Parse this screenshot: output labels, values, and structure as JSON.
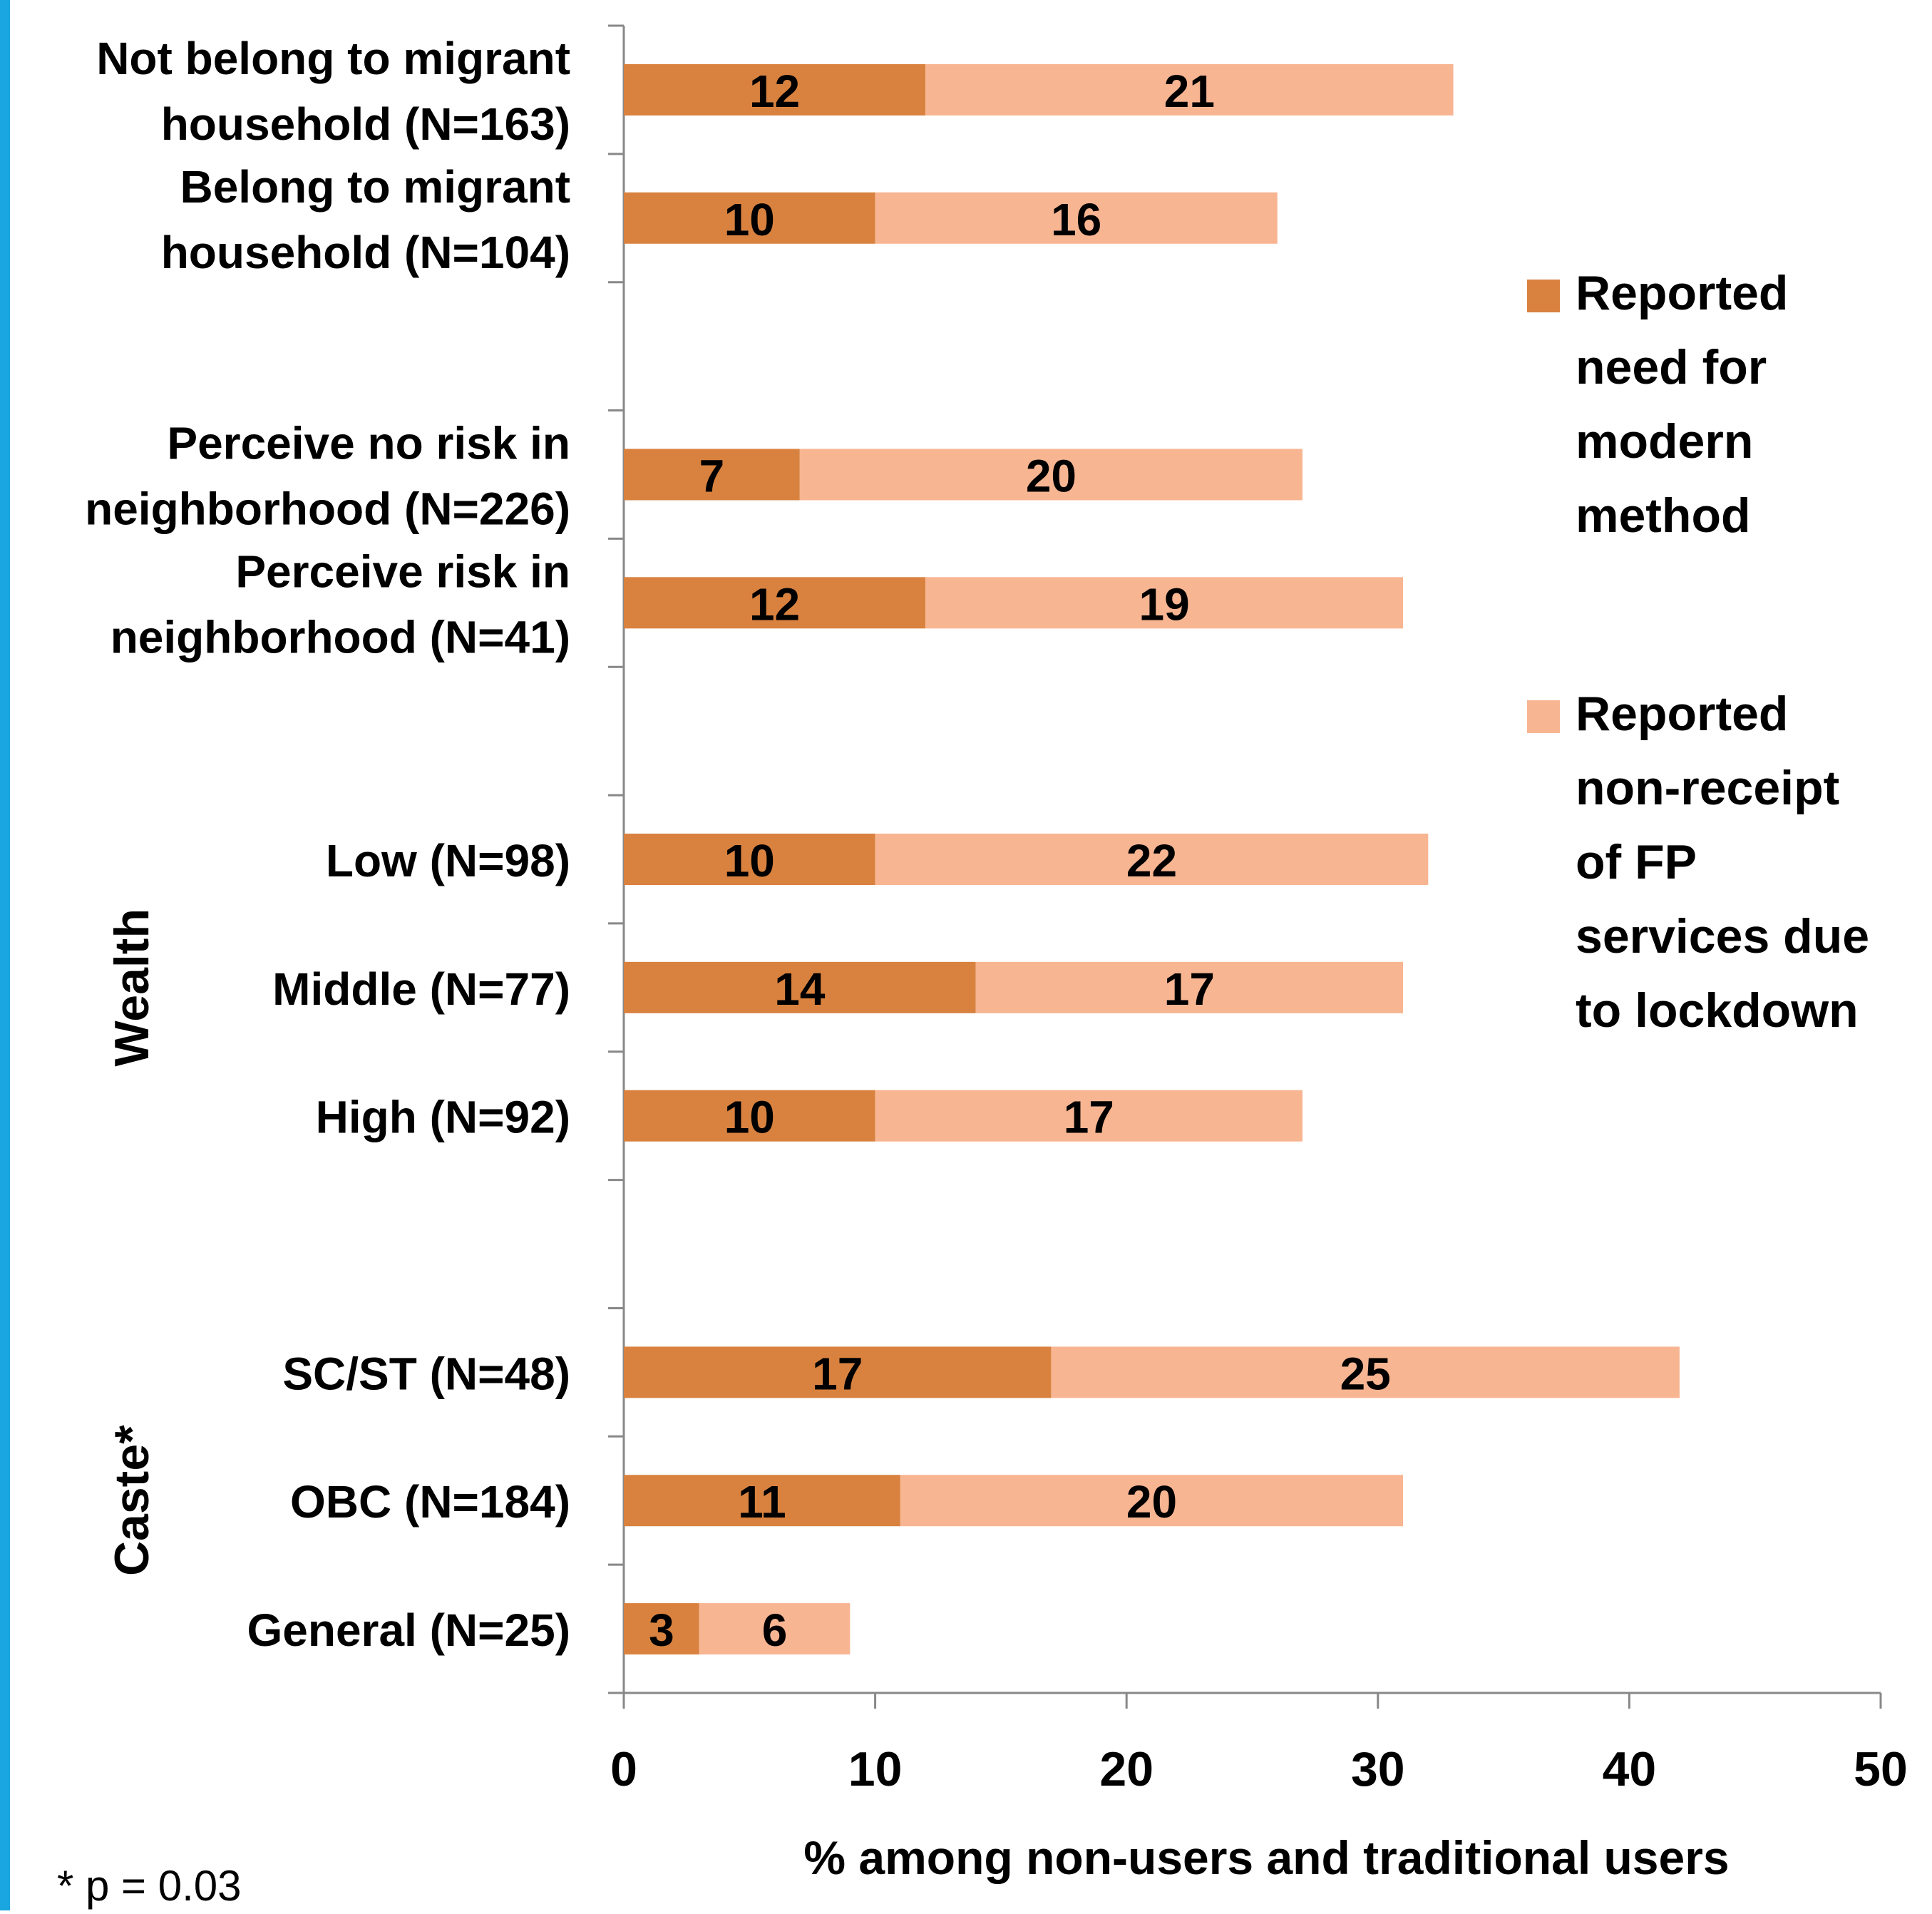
{
  "chart_data": {
    "type": "bar",
    "orientation": "horizontal",
    "stacked": true,
    "categories": [
      "Not belong to migrant household (N=163)",
      "Belong to migrant household (N=104)",
      "Perceive no risk in neighborhood (N=226)",
      "Perceive risk in neighborhood (N=41)",
      "Low (N=98)",
      "Middle (N=77)",
      "High (N=92)",
      "SC/ST (N=48)",
      "OBC (N=184)",
      "General (N=25)"
    ],
    "category_lines": [
      [
        "Not belong to migrant",
        "household (N=163)"
      ],
      [
        "Belong to migrant",
        "household (N=104)"
      ],
      [
        "Perceive no risk in",
        "neighborhood (N=226)"
      ],
      [
        "Perceive risk in",
        "neighborhood (N=41)"
      ],
      [
        "Low (N=98)"
      ],
      [
        "Middle (N=77)"
      ],
      [
        "High (N=92)"
      ],
      [
        "SC/ST (N=48)"
      ],
      [
        "OBC (N=184)"
      ],
      [
        "General (N=25)"
      ]
    ],
    "groups": [
      {
        "label": "",
        "members": [
          0,
          1
        ]
      },
      {
        "label": "",
        "members": [
          2,
          3
        ]
      },
      {
        "label": "Wealth",
        "members": [
          4,
          5,
          6
        ]
      },
      {
        "label": "Caste*",
        "members": [
          7,
          8,
          9
        ]
      }
    ],
    "series": [
      {
        "name": "Reported need for modern method",
        "name_lines": [
          "Reported",
          "need for",
          "modern",
          "method"
        ],
        "color": "#d9823f",
        "values": [
          12,
          10,
          7,
          12,
          10,
          14,
          10,
          17,
          11,
          3
        ],
        "labels": [
          "12",
          "10",
          "7",
          "12",
          "10",
          "14",
          "10",
          "17",
          "11",
          "3"
        ]
      },
      {
        "name": "Reported non-receipt of FP services due to lockdown",
        "name_lines": [
          "Reported",
          "non-receipt",
          "of FP",
          "services due",
          "to lockdown"
        ],
        "color": "#f8b592",
        "values": [
          21,
          16,
          20,
          19,
          22,
          17,
          17,
          25,
          20,
          6
        ],
        "labels": [
          "21",
          "16",
          "20",
          "19",
          "22",
          "17",
          "17",
          "25",
          "20",
          "6"
        ]
      }
    ],
    "xlabel": "% among non-users and traditional users",
    "xlim": [
      0,
      50
    ],
    "xticks": [
      "0",
      "10",
      "20",
      "30",
      "40",
      "50"
    ],
    "grid": false,
    "legend_position": "right"
  },
  "footnote": "* p = 0.03",
  "colors": {
    "accent_strip": "#1aa6e0",
    "axis": "#888888"
  }
}
